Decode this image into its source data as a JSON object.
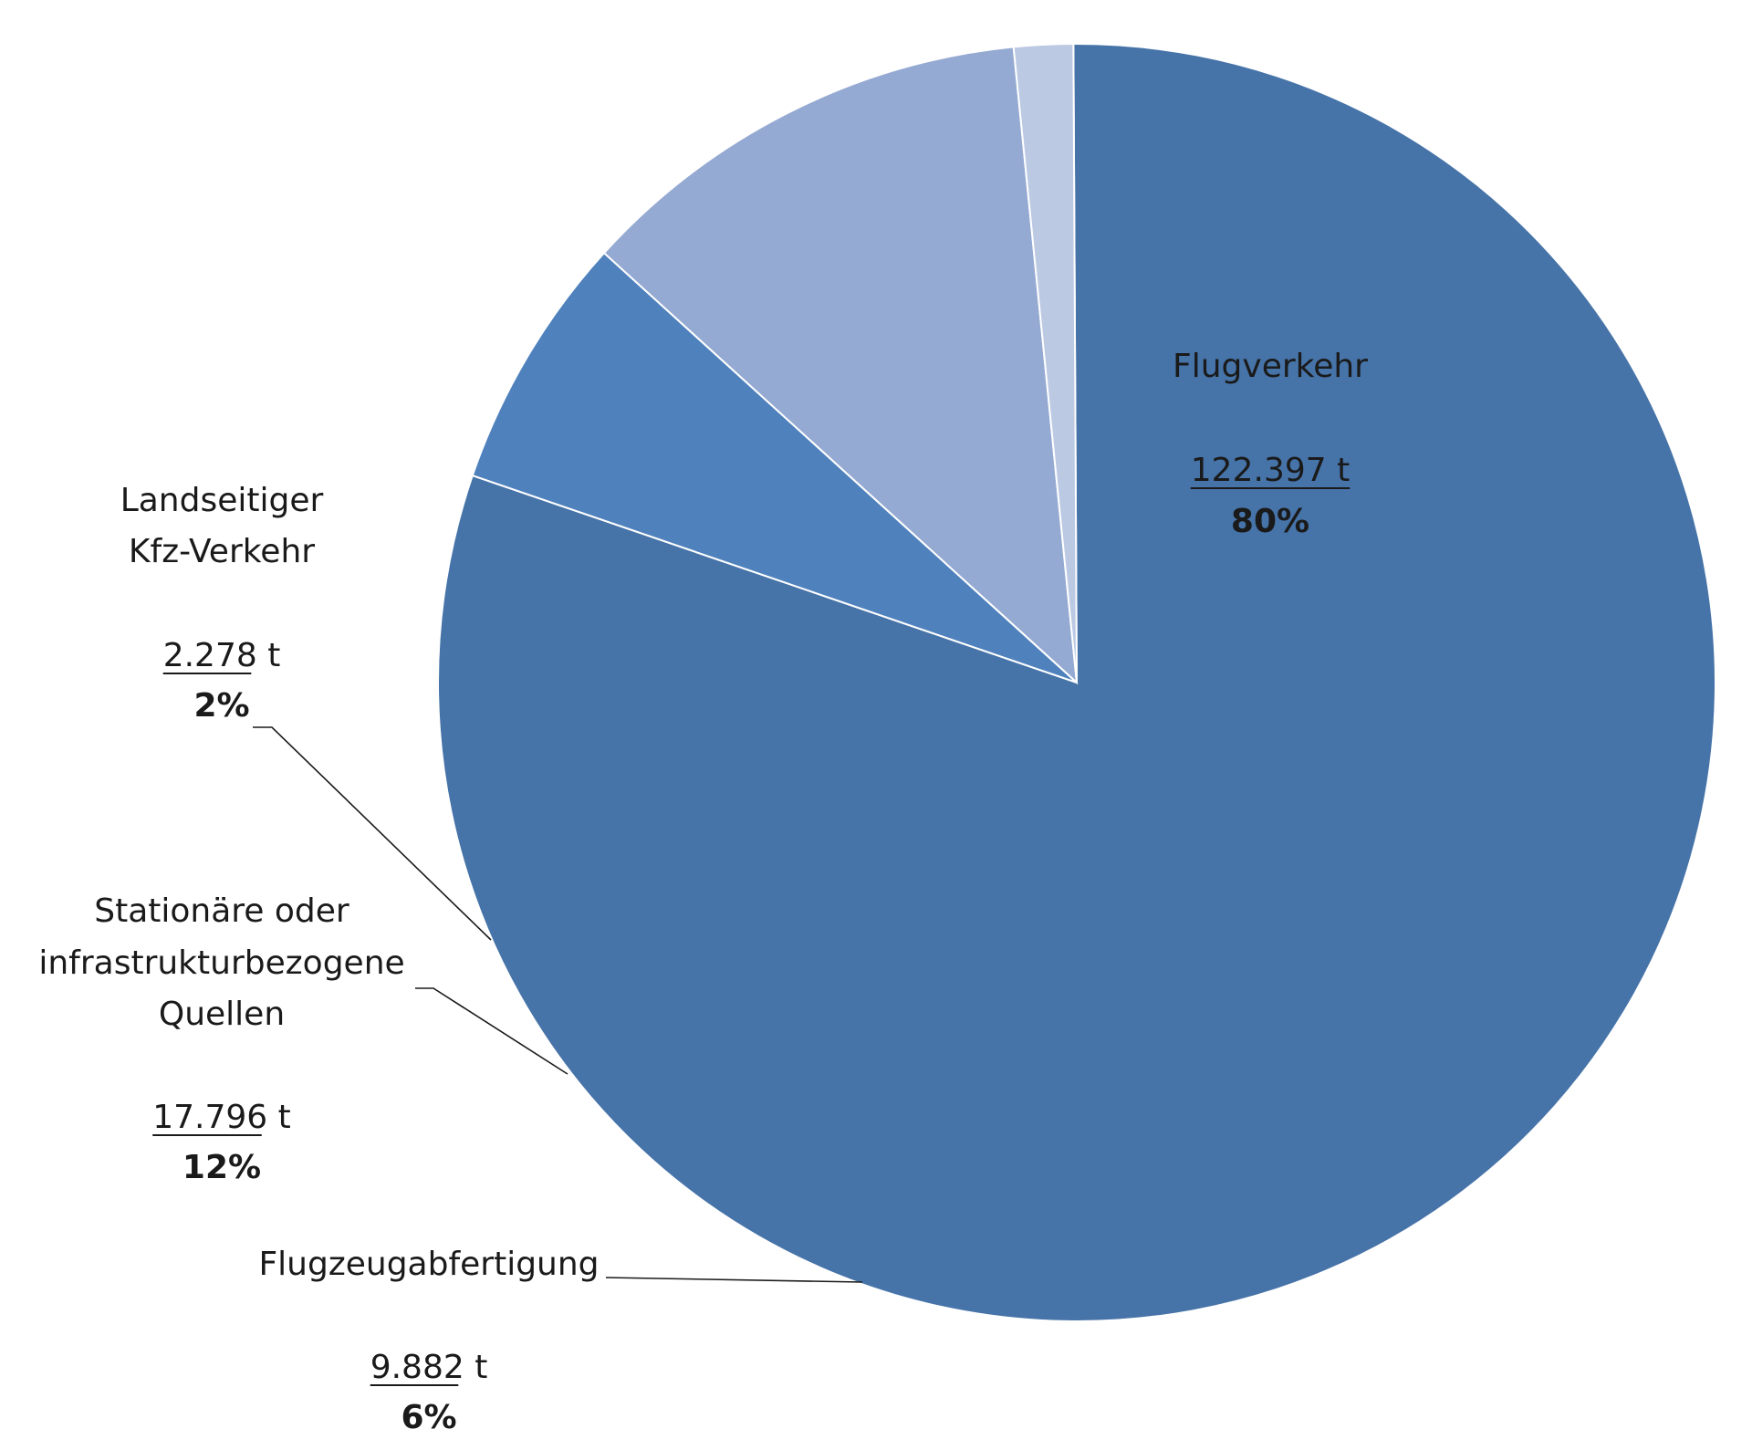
{
  "chart_data": {
    "type": "pie",
    "slices": [
      {
        "name": "Flugverkehr",
        "name_lines": [
          "Flugverkehr"
        ],
        "value_label": "122.397 t",
        "percent_label": "80%",
        "value": 122397,
        "color": "#4673a8"
      },
      {
        "name": "Flugzeugabfertigung",
        "name_lines": [
          "Flugzeugabfertigung"
        ],
        "value_label": "9.882 t",
        "percent_label": "6%",
        "value": 9882,
        "color": "#4f81bd"
      },
      {
        "name": "Stationäre oder infrastrukturbezogene Quellen",
        "name_lines": [
          "Stationäre oder",
          "infrastrukturbezogene",
          "Quellen"
        ],
        "value_label": "17.796 t",
        "percent_label": "12%",
        "value": 17796,
        "color": "#95aad2"
      },
      {
        "name": "Landseitiger Kfz-Verkehr",
        "name_lines": [
          "Landseitiger",
          "Kfz-Verkehr"
        ],
        "value_label": "2.278 t",
        "percent_label": "2%",
        "value": 2278,
        "color": "#bbc9e3"
      }
    ]
  }
}
